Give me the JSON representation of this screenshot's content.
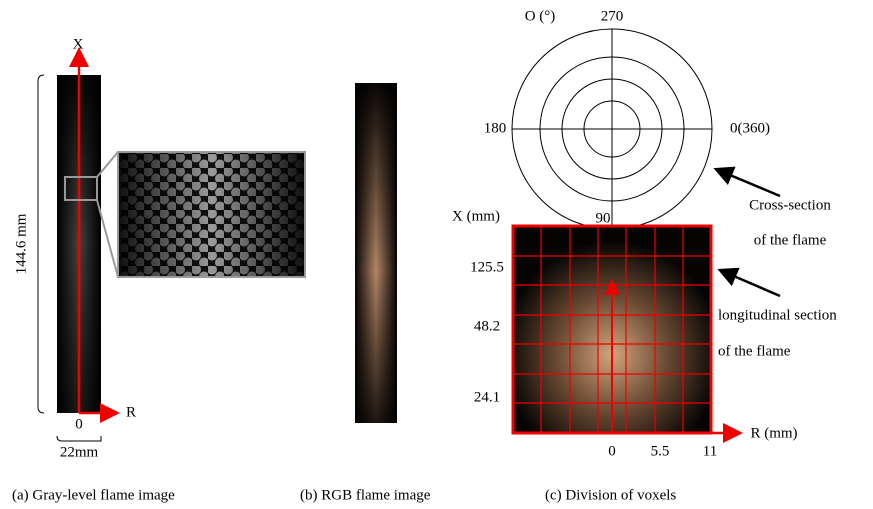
{
  "panel_a": {
    "x_axis_label": "X",
    "r_axis_label": "R",
    "height_label": "144.6 mm",
    "origin_label": "0",
    "width_label": "22mm",
    "caption": "(a) Gray-level flame image"
  },
  "panel_b": {
    "caption": "(b) RGB flame image"
  },
  "panel_c": {
    "polar": {
      "unit_label": "O (°)",
      "angle_labels": [
        "270",
        "180",
        "0(360)",
        "90"
      ]
    },
    "annotations": [
      "Cross-section",
      "of the flame",
      "longitudinal section",
      "of the flame"
    ],
    "x_axis_label": "X (mm)",
    "x_ticks": [
      "125.5",
      "48.2",
      "24.1"
    ],
    "r_axis_label": "R (mm)",
    "r_ticks": [
      "0",
      "5.5",
      "11"
    ],
    "caption": "(c) Division of voxels"
  }
}
